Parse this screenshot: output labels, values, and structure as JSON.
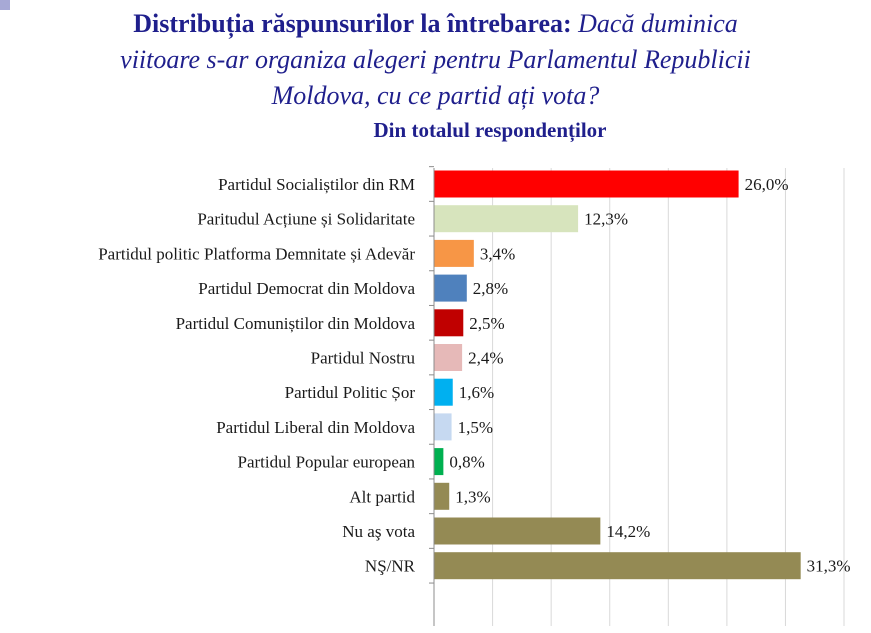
{
  "title": {
    "bold_part": "Distribuția răspunsurilor la întrebarea:",
    "italic_part_1": "Dacă duminica",
    "italic_part_2": "viitoare s-ar organiza alegeri pentru Parlamentul Republicii",
    "italic_part_3": "Moldova, cu ce partid ați vota?"
  },
  "subtitle": "Din totalul respondenților",
  "chart_data": {
    "type": "bar",
    "orientation": "horizontal",
    "value_unit": "%",
    "xlim": [
      0,
      35
    ],
    "grid": "vertical",
    "categories": [
      "Partidul Socialiștilor din RM",
      "Paritudul Acțiune și Solidaritate",
      "Partidul politic Platforma Demnitate și Adevăr",
      "Partidul Democrat din Moldova",
      "Partidul Comuniștilor din Moldova",
      "Partidul Nostru",
      "Partidul Politic Șor",
      "Partidul Liberal din Moldova",
      "Partidul Popular european",
      "Alt partid",
      "Nu aş vota",
      "NŞ/NR"
    ],
    "values": [
      26.0,
      12.3,
      3.4,
      2.8,
      2.5,
      2.4,
      1.6,
      1.5,
      0.8,
      1.3,
      14.2,
      31.3
    ],
    "value_labels": [
      "26,0%",
      "12,3%",
      "3,4%",
      "2,8%",
      "2,5%",
      "2,4%",
      "1,6%",
      "1,5%",
      "0,8%",
      "1,3%",
      "14,2%",
      "31,3%"
    ],
    "colors": [
      "#ff0000",
      "#d7e4bd",
      "#f79646",
      "#4f81bd",
      "#c00000",
      "#e6b9b8",
      "#00b0f0",
      "#c6d9f1",
      "#00b050",
      "#948a54",
      "#948a54",
      "#948a54"
    ]
  }
}
